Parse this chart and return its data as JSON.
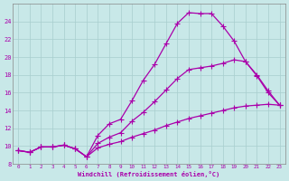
{
  "bg_color": "#c8e8e8",
  "grid_color": "#a8cece",
  "line_color": "#aa00aa",
  "xlim": [
    -0.5,
    23.5
  ],
  "ylim": [
    8,
    26
  ],
  "xticks": [
    0,
    1,
    2,
    3,
    4,
    5,
    6,
    7,
    8,
    9,
    10,
    11,
    12,
    13,
    14,
    15,
    16,
    17,
    18,
    19,
    20,
    21,
    22,
    23
  ],
  "yticks": [
    8,
    10,
    12,
    14,
    16,
    18,
    20,
    22,
    24
  ],
  "xlabel": "Windchill (Refroidissement éolien,°C)",
  "line1_x": [
    0,
    1,
    2,
    3,
    4,
    5,
    6,
    7,
    8,
    9,
    10,
    11,
    12,
    13,
    14,
    15,
    16,
    17,
    18,
    19,
    20,
    21,
    22,
    23
  ],
  "line1_y": [
    9.5,
    9.3,
    9.9,
    9.9,
    10.1,
    9.7,
    8.8,
    11.2,
    12.5,
    13.0,
    15.1,
    17.4,
    19.2,
    21.5,
    23.8,
    25.0,
    24.9,
    24.9,
    23.5,
    21.8,
    19.5,
    17.9,
    16.0,
    14.6
  ],
  "line2_x": [
    0,
    1,
    2,
    3,
    4,
    5,
    6,
    7,
    8,
    9,
    10,
    11,
    12,
    13,
    14,
    15,
    16,
    17,
    18,
    19,
    20,
    21,
    22,
    23
  ],
  "line2_y": [
    9.5,
    9.3,
    9.9,
    9.9,
    10.1,
    9.7,
    8.8,
    10.3,
    11.0,
    11.5,
    12.8,
    13.8,
    15.0,
    16.3,
    17.6,
    18.6,
    18.8,
    19.0,
    19.3,
    19.7,
    19.5,
    18.0,
    16.2,
    14.6
  ],
  "line3_x": [
    0,
    1,
    2,
    3,
    4,
    5,
    6,
    7,
    8,
    9,
    10,
    11,
    12,
    13,
    14,
    15,
    16,
    17,
    18,
    19,
    20,
    21,
    22,
    23
  ],
  "line3_y": [
    9.5,
    9.3,
    9.9,
    9.9,
    10.1,
    9.7,
    8.8,
    9.8,
    10.2,
    10.5,
    11.0,
    11.4,
    11.8,
    12.3,
    12.7,
    13.1,
    13.4,
    13.7,
    14.0,
    14.3,
    14.5,
    14.6,
    14.7,
    14.6
  ],
  "marker": "+",
  "markersize": 4,
  "linewidth": 0.9
}
